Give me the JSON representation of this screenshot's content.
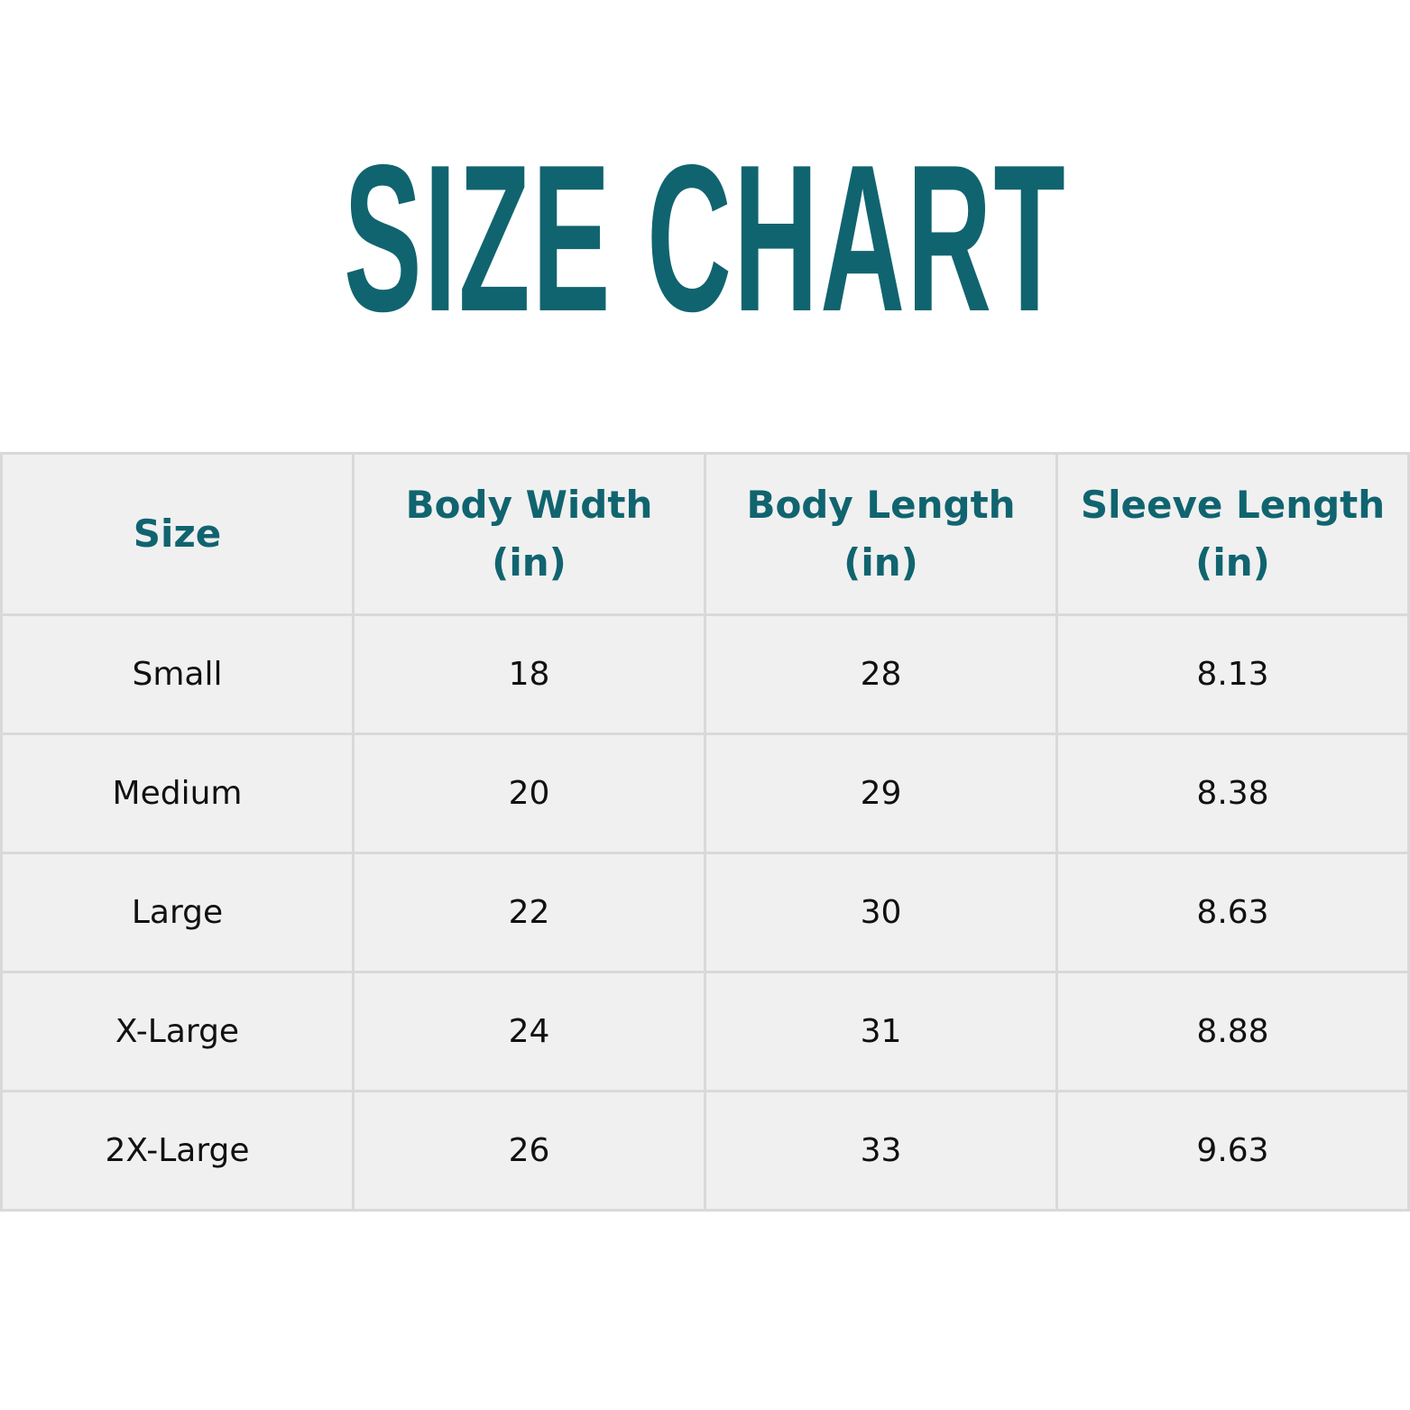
{
  "title": "SIZE CHART",
  "colors": {
    "accent": "#10646f",
    "cell_bg": "#f0f0f0",
    "border": "#d9d9d9"
  },
  "table": {
    "headers": [
      {
        "line1": "Size",
        "line2": ""
      },
      {
        "line1": "Body Width",
        "line2": "(in)"
      },
      {
        "line1": "Body Length",
        "line2": "(in)"
      },
      {
        "line1": "Sleeve Length",
        "line2": "(in)"
      }
    ],
    "rows": [
      [
        "Small",
        "18",
        "28",
        "8.13"
      ],
      [
        "Medium",
        "20",
        "29",
        "8.38"
      ],
      [
        "Large",
        "22",
        "30",
        "8.63"
      ],
      [
        "X-Large",
        "24",
        "31",
        "8.88"
      ],
      [
        "2X-Large",
        "26",
        "33",
        "9.63"
      ]
    ]
  }
}
